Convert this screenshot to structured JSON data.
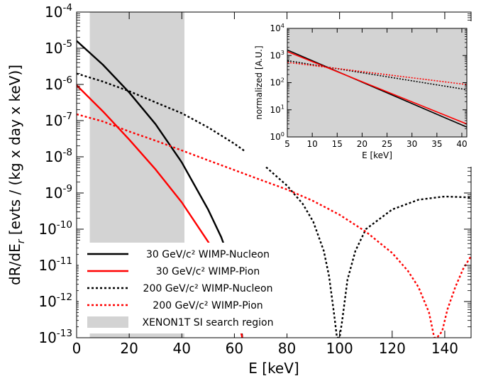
{
  "chart_data": [
    {
      "type": "line",
      "xlabel": "E [keV]",
      "ylabel": "dR/dE_r [evts / (kg x day x keV)]",
      "xlim": [
        0,
        150
      ],
      "ylim": [
        1e-13,
        0.0001
      ],
      "yscale": "log",
      "x_ticks": [
        "0",
        "20",
        "40",
        "60",
        "80",
        "100",
        "120",
        "140"
      ],
      "y_ticks": [
        {
          "base": "10",
          "exp": "-13"
        },
        {
          "base": "10",
          "exp": "-12"
        },
        {
          "base": "10",
          "exp": "-11"
        },
        {
          "base": "10",
          "exp": "-10"
        },
        {
          "base": "10",
          "exp": "-9"
        },
        {
          "base": "10",
          "exp": "-8"
        },
        {
          "base": "10",
          "exp": "-7"
        },
        {
          "base": "10",
          "exp": "-6"
        },
        {
          "base": "10",
          "exp": "-5"
        },
        {
          "base": "10",
          "exp": "-4"
        }
      ],
      "shaded_region": {
        "x": [
          5,
          41
        ],
        "color": "#d3d3d3",
        "label": "XENON1T SI search region"
      },
      "legend_position": "lower-left",
      "series": [
        {
          "name": "30 GeV/c² WIMP-Nucleon",
          "color": "#000000",
          "style": "solid",
          "points": [
            [
              0,
              1.6e-05
            ],
            [
              10,
              3.5e-06
            ],
            [
              20,
              6e-07
            ],
            [
              30,
              8e-08
            ],
            [
              40,
              7e-09
            ],
            [
              50,
              3.5e-10
            ],
            [
              55,
              6e-11
            ],
            [
              58,
              1.5e-11
            ],
            [
              60,
              4e-12
            ],
            [
              62,
              5e-13
            ],
            [
              63,
              1e-13
            ]
          ]
        },
        {
          "name": "30 GeV/c² WIMP-Pion",
          "color": "#ff0000",
          "style": "solid",
          "points": [
            [
              0,
              9.5e-07
            ],
            [
              10,
              1.8e-07
            ],
            [
              20,
              3e-08
            ],
            [
              30,
              4.5e-09
            ],
            [
              40,
              5.5e-10
            ],
            [
              50,
              4.5e-11
            ],
            [
              55,
              1.2e-11
            ],
            [
              58,
              4e-12
            ],
            [
              60,
              1.2e-12
            ],
            [
              62,
              2e-13
            ],
            [
              63,
              1e-13
            ]
          ]
        },
        {
          "name": "200 GeV/c² WIMP-Nucleon",
          "color": "#000000",
          "style": "dotted",
          "points": [
            [
              0,
              2e-06
            ],
            [
              10,
              1.2e-06
            ],
            [
              20,
              6.5e-07
            ],
            [
              30,
              3.2e-07
            ],
            [
              40,
              1.6e-07
            ],
            [
              50,
              6.5e-08
            ],
            [
              60,
              2.3e-08
            ],
            [
              70,
              7e-09
            ],
            [
              80,
              1.6e-09
            ],
            [
              86,
              5e-10
            ],
            [
              90,
              1.6e-10
            ],
            [
              94,
              2.5e-11
            ],
            [
              96,
              5e-12
            ],
            [
              98,
              4e-13
            ],
            [
              99,
              1e-13
            ],
            [
              100,
              1e-13
            ],
            [
              101,
              3e-13
            ],
            [
              103,
              4e-12
            ],
            [
              106,
              2.5e-11
            ],
            [
              110,
              1e-10
            ],
            [
              120,
              3.5e-10
            ],
            [
              130,
              6.5e-10
            ],
            [
              140,
              8e-10
            ],
            [
              150,
              7.5e-10
            ]
          ]
        },
        {
          "name": "200 GeV/c² WIMP-Pion",
          "color": "#ff0000",
          "style": "dotted",
          "points": [
            [
              0,
              1.5e-07
            ],
            [
              10,
              9.5e-08
            ],
            [
              20,
              5e-08
            ],
            [
              30,
              2.8e-08
            ],
            [
              40,
              1.5e-08
            ],
            [
              50,
              8e-09
            ],
            [
              60,
              4.3e-09
            ],
            [
              70,
              2.3e-09
            ],
            [
              80,
              1.25e-09
            ],
            [
              90,
              6e-10
            ],
            [
              100,
              2.5e-10
            ],
            [
              110,
              8.5e-11
            ],
            [
              120,
              2.2e-11
            ],
            [
              126,
              7e-12
            ],
            [
              130,
              2.5e-12
            ],
            [
              134,
              5e-13
            ],
            [
              136,
              1e-13
            ],
            [
              137,
              1e-13
            ],
            [
              139,
              1.5e-13
            ],
            [
              141,
              6e-13
            ],
            [
              144,
              2.5e-12
            ],
            [
              147,
              8e-12
            ],
            [
              150,
              1.8e-11
            ]
          ]
        }
      ]
    },
    {
      "type": "line",
      "xlabel": "E [keV]",
      "ylabel": "normalized [A.U.]",
      "xlim": [
        5,
        41
      ],
      "ylim": [
        1,
        10000
      ],
      "yscale": "log",
      "background": "#d3d3d3",
      "x_ticks": [
        "5",
        "10",
        "15",
        "20",
        "25",
        "30",
        "35",
        "40"
      ],
      "y_ticks": [
        {
          "base": "10",
          "exp": "0"
        },
        {
          "base": "10",
          "exp": "1"
        },
        {
          "base": "10",
          "exp": "2"
        },
        {
          "base": "10",
          "exp": "3"
        },
        {
          "base": "10",
          "exp": "4"
        }
      ],
      "series": [
        {
          "name": "30 GeV/c² WIMP-Nucleon",
          "color": "#000000",
          "style": "solid",
          "points": [
            [
              5,
              1600
            ],
            [
              41,
              2.3
            ]
          ]
        },
        {
          "name": "30 GeV/c² WIMP-Pion",
          "color": "#ff0000",
          "style": "solid",
          "points": [
            [
              5,
              1400
            ],
            [
              41,
              3.0
            ]
          ]
        },
        {
          "name": "200 GeV/c² WIMP-Nucleon",
          "color": "#000000",
          "style": "dotted",
          "points": [
            [
              5,
              650
            ],
            [
              41,
              55
            ]
          ]
        },
        {
          "name": "200 GeV/c² WIMP-Pion",
          "color": "#ff0000",
          "style": "dotted",
          "points": [
            [
              5,
              560
            ],
            [
              41,
              85
            ]
          ]
        }
      ]
    }
  ]
}
